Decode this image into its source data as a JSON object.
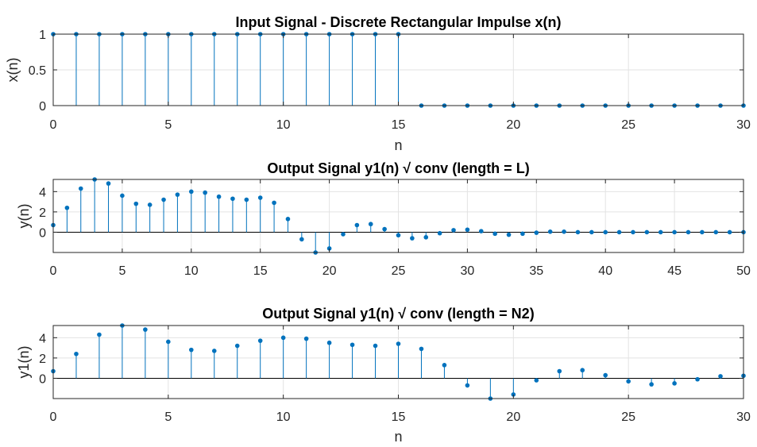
{
  "chart_data": [
    {
      "type": "stem",
      "title": "Input Signal - Discrete Rectangular Impulse x(n)",
      "xlabel": "n",
      "ylabel": "x(n)",
      "xlim": [
        0,
        30
      ],
      "ylim": [
        0,
        1
      ],
      "xticks": [
        0,
        5,
        10,
        15,
        20,
        25,
        30
      ],
      "xtick_labels": [
        "0",
        "5",
        "10",
        "15",
        "20",
        "25",
        "30"
      ],
      "yticks": [
        0,
        0.5,
        1
      ],
      "ytick_labels": [
        "0",
        "0.5",
        "1"
      ],
      "grid": true,
      "color": "#0072BD",
      "x": [
        0,
        1,
        2,
        3,
        4,
        5,
        6,
        7,
        8,
        9,
        10,
        11,
        12,
        13,
        14,
        15,
        16,
        17,
        18,
        19,
        20,
        21,
        22,
        23,
        24,
        25,
        26,
        27,
        28,
        29,
        30
      ],
      "y": [
        1,
        1,
        1,
        1,
        1,
        1,
        1,
        1,
        1,
        1,
        1,
        1,
        1,
        1,
        1,
        1,
        0,
        0,
        0,
        0,
        0,
        0,
        0,
        0,
        0,
        0,
        0,
        0,
        0,
        0,
        0
      ]
    },
    {
      "type": "stem",
      "title": "Output Signal y1(n) √ conv (length = L)",
      "xlabel": "",
      "ylabel": "y(n)",
      "xlim": [
        0,
        50
      ],
      "ylim": [
        -2,
        5.2
      ],
      "xticks": [
        0,
        5,
        10,
        15,
        20,
        25,
        30,
        35,
        40,
        45,
        50
      ],
      "xtick_labels": [
        "0",
        "5",
        "10",
        "15",
        "20",
        "25",
        "30",
        "35",
        "40",
        "45",
        "50"
      ],
      "yticks": [
        0,
        2,
        4
      ],
      "ytick_labels": [
        "0",
        "2",
        "4"
      ],
      "grid": true,
      "color": "#0072BD",
      "x": [
        0,
        1,
        2,
        3,
        4,
        5,
        6,
        7,
        8,
        9,
        10,
        11,
        12,
        13,
        14,
        15,
        16,
        17,
        18,
        19,
        20,
        21,
        22,
        23,
        24,
        25,
        26,
        27,
        28,
        29,
        30,
        31,
        32,
        33,
        34,
        35,
        36,
        37,
        38,
        39,
        40,
        41,
        42,
        43,
        44,
        45,
        46,
        47,
        48,
        49,
        50
      ],
      "y": [
        0.7,
        2.4,
        4.3,
        5.2,
        4.8,
        3.6,
        2.8,
        2.7,
        3.2,
        3.7,
        4.0,
        3.9,
        3.5,
        3.3,
        3.2,
        3.4,
        2.9,
        1.3,
        -0.7,
        -2.0,
        -1.6,
        -0.2,
        0.7,
        0.8,
        0.3,
        -0.3,
        -0.6,
        -0.5,
        -0.1,
        0.2,
        0.25,
        0.1,
        -0.15,
        -0.25,
        -0.15,
        -0.05,
        0.05,
        0.05,
        0.0,
        0.0,
        0.0,
        0.0,
        0.0,
        0.0,
        0.0,
        0.0,
        0.0,
        0.0,
        0.0,
        0.0,
        0.0
      ]
    },
    {
      "type": "stem",
      "title": "Output Signal y1(n) √ conv (length = N2)",
      "xlabel": "n",
      "ylabel": "y1(n)",
      "xlim": [
        0,
        30
      ],
      "ylim": [
        -2,
        5.2
      ],
      "xticks": [
        0,
        5,
        10,
        15,
        20,
        25,
        30
      ],
      "xtick_labels": [
        "0",
        "5",
        "10",
        "15",
        "20",
        "25",
        "30"
      ],
      "yticks": [
        0,
        2,
        4
      ],
      "ytick_labels": [
        "0",
        "2",
        "4"
      ],
      "grid": true,
      "color": "#0072BD",
      "x": [
        0,
        1,
        2,
        3,
        4,
        5,
        6,
        7,
        8,
        9,
        10,
        11,
        12,
        13,
        14,
        15,
        16,
        17,
        18,
        19,
        20,
        21,
        22,
        23,
        24,
        25,
        26,
        27,
        28,
        29,
        30
      ],
      "y": [
        0.7,
        2.4,
        4.3,
        5.2,
        4.8,
        3.6,
        2.8,
        2.7,
        3.2,
        3.7,
        4.0,
        3.9,
        3.5,
        3.3,
        3.2,
        3.4,
        2.9,
        1.3,
        -0.7,
        -2.0,
        -1.6,
        -0.2,
        0.7,
        0.8,
        0.3,
        -0.3,
        -0.6,
        -0.5,
        -0.1,
        0.2,
        0.25
      ]
    }
  ]
}
